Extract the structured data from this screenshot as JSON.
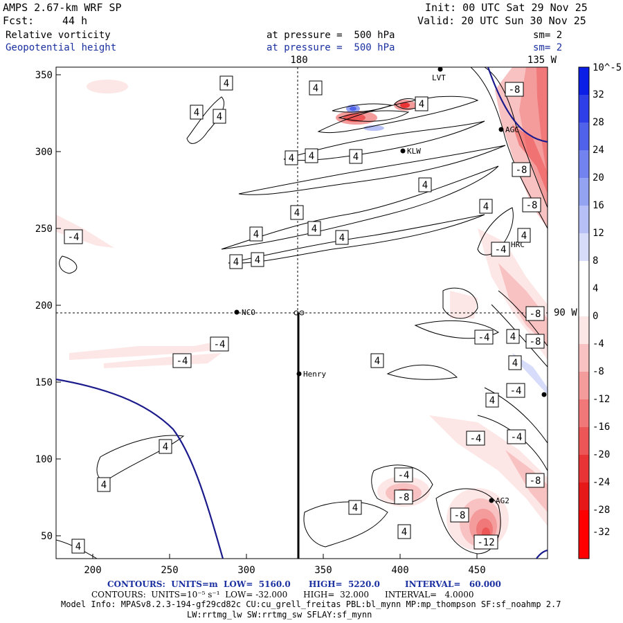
{
  "header": {
    "model": "AMPS 2.67-km WRF SP",
    "init": "Init: 00 UTC Sat 29 Nov 25",
    "fcst_label": "Fcst:",
    "fcst_value": "44 h",
    "valid": "Valid: 20 UTC Sun 30 Nov 25",
    "field1_name": "Relative vorticity",
    "field1_level": "at pressure =  500 hPa",
    "field1_sm": "sm= 2",
    "field2_name": "Geopotential height",
    "field2_level": "at pressure =  500 hPa",
    "field2_sm": "sm= 2"
  },
  "map": {
    "meridian_180": "180",
    "meridian_135w": "135 W",
    "meridian_90w": "90 W",
    "x_ticks": [
      "200",
      "250",
      "300",
      "350",
      "400",
      "450"
    ],
    "y_ticks": [
      "350",
      "300",
      "250",
      "200",
      "150",
      "100",
      "50"
    ],
    "stations": [
      {
        "name": "LVT"
      },
      {
        "name": "AGC"
      },
      {
        "name": "KLW"
      },
      {
        "name": "HRC"
      },
      {
        "name": "NCO"
      },
      {
        "name": "Henry"
      },
      {
        "name": "AG2"
      }
    ],
    "contour_labels": [
      "4",
      "4",
      "4",
      "4",
      "4",
      "4",
      "4",
      "4",
      "4",
      "4",
      "4",
      "4",
      "4",
      "4",
      "4",
      "4",
      "4",
      "4",
      "4",
      "4",
      "4",
      "4",
      "4",
      "4",
      "4",
      "4",
      "-4",
      "-4",
      "-4",
      "-4",
      "-4",
      "-4",
      "-4",
      "-4",
      "-4",
      "-8",
      "-8",
      "-8",
      "-8",
      "-8",
      "-8",
      "-8",
      "-8",
      "-12"
    ]
  },
  "colorbar": {
    "unit": "10^-5 s^-1",
    "labels": [
      "32",
      "28",
      "24",
      "20",
      "16",
      "12",
      "8",
      "4",
      "0",
      "-4",
      "-8",
      "-12",
      "-16",
      "-20",
      "-24",
      "-28",
      "-32"
    ],
    "colors": [
      "#0a1ee6",
      "#2e3fe8",
      "#5062ea",
      "#7282ee",
      "#94a2f2",
      "#b6c0f6",
      "#d6dcfa",
      "#ffffff",
      "#ffffff",
      "#fde6e6",
      "#f9c2c2",
      "#f49c9c",
      "#f07878",
      "#ec5656",
      "#e83434",
      "#e61818",
      "#ff0000"
    ]
  },
  "footer": {
    "line1_contours": "CONTOURS:  UNITS=m  LOW=  5160.0",
    "line1_high": "HIGH=  5220.0",
    "line1_interval": "INTERVAL=   60.000",
    "line2": "CONTOURS:  UNITS=10⁻⁵ s⁻¹  LOW= -32.000      HIGH=  32.000      INTERVAL=   4.0000",
    "line3": "Model Info: MPASv8.2.3-194-gf29cd82c CU:cu_grell_freitas PBL:bl_mynn MP:mp_thompson SF:sf_noahmp 2.7",
    "line4": "LW:rrtmg_lw SW:rrtmg_sw SFLAY:sf_mynn"
  }
}
